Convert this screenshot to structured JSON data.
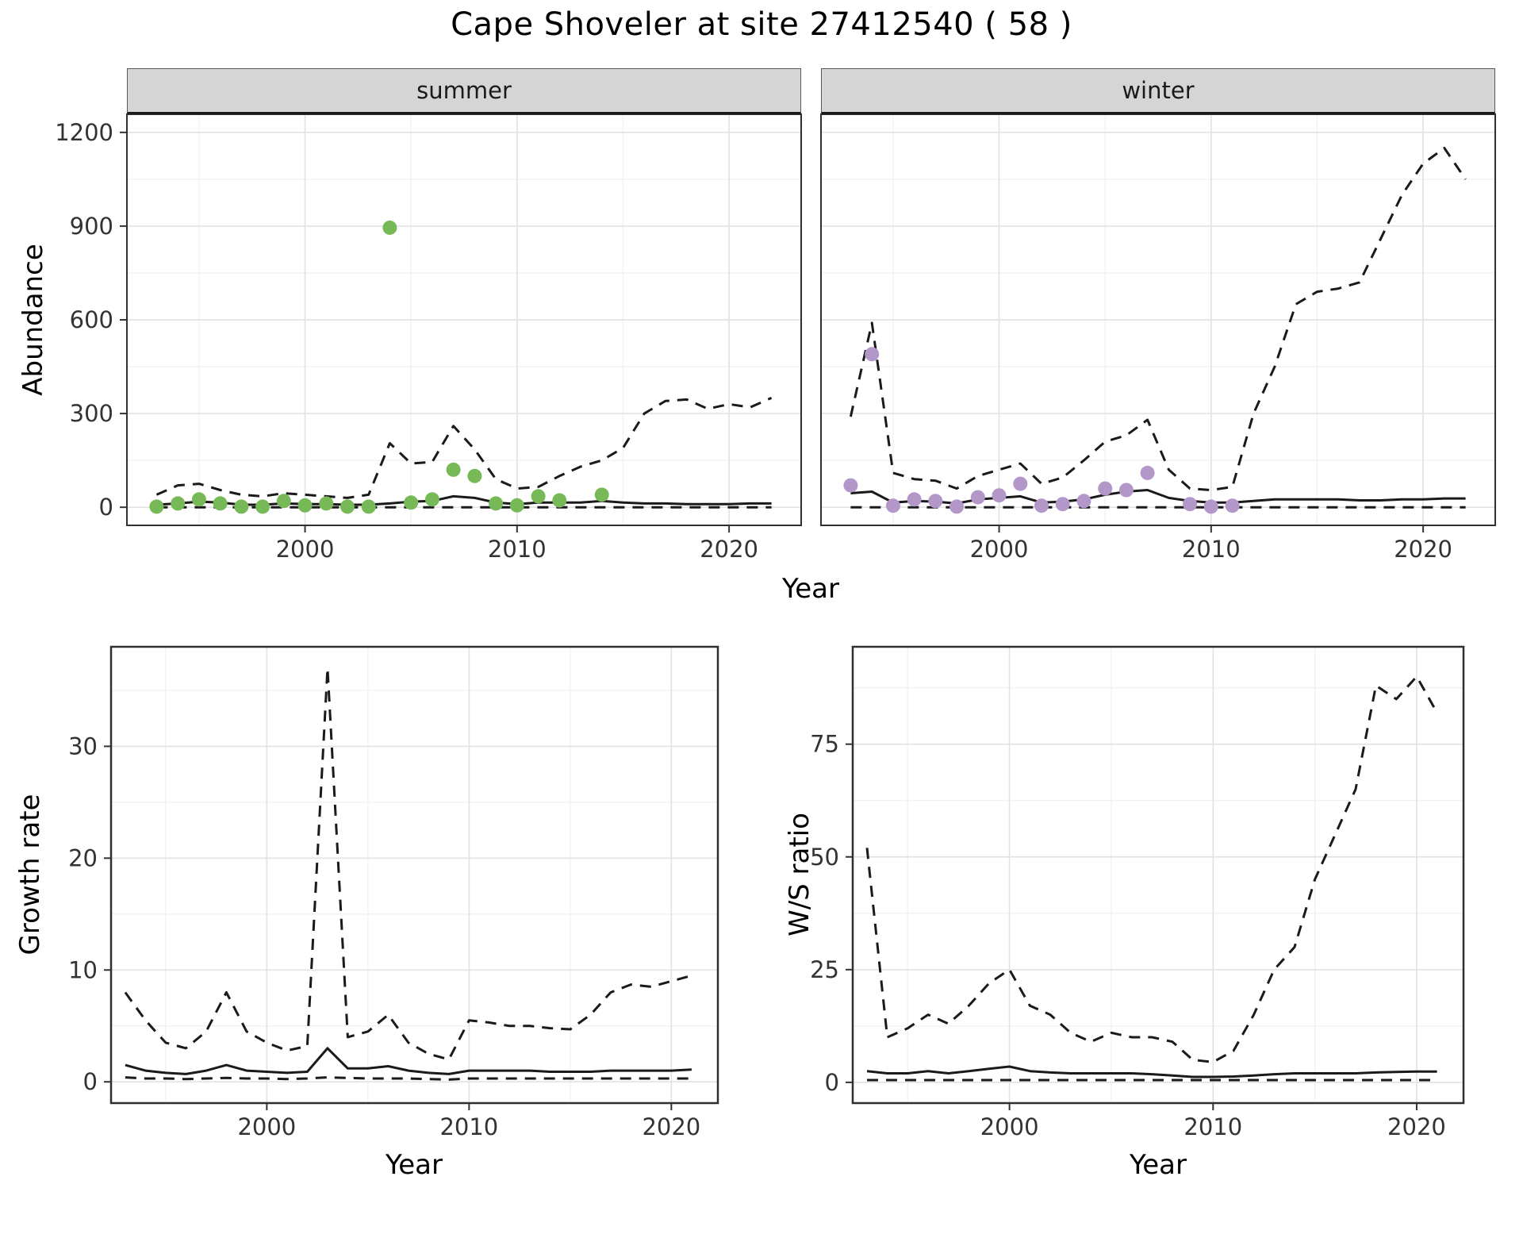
{
  "title": "Cape Shoveler at site 27412540 ( 58 )",
  "colors": {
    "summer_point": "#78b957",
    "winter_point": "#b397c8",
    "line": "#1a1a1a",
    "strip_bg": "#d5d5d5",
    "grid_major": "#e3e3e3",
    "grid_minor": "#f1f1f1",
    "panel_border": "#2f2f2f",
    "tick": "#333333"
  },
  "chart_data": [
    {
      "id": "abundance_summer",
      "type": "line+scatter",
      "facet": "summer",
      "xlabel": "Year",
      "ylabel": "Abundance",
      "xlim": [
        1991.6,
        2023.4
      ],
      "ylim": [
        -58,
        1258
      ],
      "xticks": [
        2000,
        2010,
        2020
      ],
      "yticks": [
        0,
        300,
        600,
        900,
        1200
      ],
      "x": [
        1993,
        1994,
        1995,
        1996,
        1997,
        1998,
        1999,
        2000,
        2001,
        2002,
        2003,
        2004,
        2005,
        2006,
        2007,
        2008,
        2009,
        2010,
        2011,
        2012,
        2013,
        2014,
        2015,
        2016,
        2017,
        2018,
        2019,
        2020,
        2021,
        2022
      ],
      "series": [
        {
          "name": "fit",
          "style": "solid",
          "values": [
            8,
            12,
            18,
            15,
            8,
            8,
            12,
            10,
            10,
            8,
            8,
            12,
            18,
            20,
            35,
            30,
            15,
            10,
            15,
            15,
            15,
            20,
            15,
            12,
            12,
            10,
            10,
            10,
            12,
            12
          ]
        },
        {
          "name": "ci_upper",
          "style": "dashed",
          "values": [
            40,
            70,
            75,
            55,
            40,
            35,
            45,
            40,
            35,
            30,
            40,
            205,
            140,
            145,
            260,
            185,
            90,
            60,
            65,
            100,
            130,
            150,
            190,
            300,
            340,
            345,
            315,
            330,
            320,
            350
          ]
        },
        {
          "name": "ci_lower",
          "style": "dashed",
          "values": [
            0,
            0,
            0,
            0,
            0,
            0,
            0,
            0,
            0,
            0,
            0,
            0,
            0,
            0,
            0,
            0,
            0,
            0,
            0,
            0,
            0,
            0,
            0,
            0,
            0,
            0,
            0,
            0,
            0,
            0
          ]
        }
      ],
      "points": {
        "name": "observed_counts",
        "color": "#78b957",
        "x": [
          1993,
          1994,
          1995,
          1996,
          1997,
          1998,
          1999,
          2000,
          2001,
          2002,
          2003,
          2004,
          2005,
          2006,
          2007,
          2008,
          2009,
          2010,
          2011,
          2012,
          2014
        ],
        "y": [
          2,
          12,
          25,
          12,
          2,
          2,
          20,
          6,
          12,
          2,
          2,
          895,
          15,
          25,
          120,
          100,
          12,
          6,
          35,
          22,
          40
        ]
      }
    },
    {
      "id": "abundance_winter",
      "type": "line+scatter",
      "facet": "winter",
      "xlabel": "Year",
      "ylabel": "Abundance",
      "xlim": [
        1991.6,
        2023.4
      ],
      "ylim": [
        -58,
        1258
      ],
      "xticks": [
        2000,
        2010,
        2020
      ],
      "yticks": [
        0,
        300,
        600,
        900,
        1200
      ],
      "x": [
        1993,
        1994,
        1995,
        1996,
        1997,
        1998,
        1999,
        2000,
        2001,
        2002,
        2003,
        2004,
        2005,
        2006,
        2007,
        2008,
        2009,
        2010,
        2011,
        2012,
        2013,
        2014,
        2015,
        2016,
        2017,
        2018,
        2019,
        2020,
        2021,
        2022
      ],
      "series": [
        {
          "name": "fit",
          "style": "solid",
          "values": [
            45,
            50,
            15,
            20,
            18,
            12,
            25,
            30,
            35,
            15,
            18,
            25,
            40,
            50,
            55,
            30,
            20,
            15,
            15,
            20,
            25,
            25,
            25,
            25,
            22,
            22,
            25,
            25,
            28,
            28
          ]
        },
        {
          "name": "ci_upper",
          "style": "dashed",
          "values": [
            290,
            590,
            110,
            90,
            85,
            60,
            100,
            120,
            140,
            75,
            95,
            150,
            210,
            230,
            280,
            120,
            60,
            55,
            65,
            300,
            450,
            650,
            690,
            700,
            720,
            860,
            1000,
            1100,
            1150,
            1050
          ]
        },
        {
          "name": "ci_lower",
          "style": "dashed",
          "values": [
            0,
            0,
            0,
            0,
            0,
            0,
            0,
            0,
            0,
            0,
            0,
            0,
            0,
            0,
            0,
            0,
            0,
            0,
            0,
            0,
            0,
            0,
            0,
            0,
            0,
            0,
            0,
            0,
            0,
            0
          ]
        }
      ],
      "points": {
        "name": "observed_counts",
        "color": "#b397c8",
        "x": [
          1993,
          1994,
          1995,
          1996,
          1997,
          1998,
          1999,
          2000,
          2001,
          2002,
          2003,
          2004,
          2005,
          2006,
          2007,
          2009,
          2010,
          2011
        ],
        "y": [
          70,
          490,
          5,
          25,
          20,
          2,
          32,
          38,
          75,
          5,
          10,
          20,
          60,
          55,
          110,
          10,
          2,
          5
        ]
      }
    },
    {
      "id": "growth_rate",
      "type": "line",
      "xlabel": "Year",
      "ylabel": "Growth rate",
      "xlim": [
        1992.3,
        2022.3
      ],
      "ylim": [
        -1.9,
        38.9
      ],
      "xticks": [
        2000,
        2010,
        2020
      ],
      "yticks": [
        0,
        10,
        20,
        30
      ],
      "x": [
        1993,
        1994,
        1995,
        1996,
        1997,
        1998,
        1999,
        2000,
        2001,
        2002,
        2003,
        2004,
        2005,
        2006,
        2007,
        2008,
        2009,
        2010,
        2011,
        2012,
        2013,
        2014,
        2015,
        2016,
        2017,
        2018,
        2019,
        2020,
        2021
      ],
      "series": [
        {
          "name": "fit",
          "style": "solid",
          "values": [
            1.5,
            1,
            0.8,
            0.7,
            1,
            1.5,
            1,
            0.9,
            0.8,
            0.9,
            3,
            1.2,
            1.2,
            1.4,
            1,
            0.8,
            0.7,
            1,
            1,
            1,
            1,
            0.9,
            0.9,
            0.9,
            1,
            1,
            1,
            1,
            1.1
          ]
        },
        {
          "name": "ci_upper",
          "style": "dashed",
          "values": [
            8,
            5.5,
            3.5,
            3,
            4.5,
            8,
            4.5,
            3.5,
            2.8,
            3.2,
            37,
            4,
            4.5,
            6,
            3.5,
            2.5,
            2,
            5.5,
            5.3,
            5,
            5,
            4.8,
            4.7,
            6,
            8,
            8.7,
            8.5,
            9,
            9.5
          ]
        },
        {
          "name": "ci_lower",
          "style": "dashed",
          "values": [
            0.4,
            0.3,
            0.3,
            0.25,
            0.3,
            0.35,
            0.3,
            0.3,
            0.25,
            0.3,
            0.4,
            0.35,
            0.3,
            0.3,
            0.3,
            0.25,
            0.2,
            0.3,
            0.3,
            0.3,
            0.3,
            0.3,
            0.3,
            0.3,
            0.3,
            0.3,
            0.3,
            0.3,
            0.3
          ]
        }
      ]
    },
    {
      "id": "ws_ratio",
      "type": "line",
      "xlabel": "Year",
      "ylabel": "W/S ratio",
      "xlim": [
        1992.3,
        2022.3
      ],
      "ylim": [
        -4.6,
        96.6
      ],
      "xticks": [
        2000,
        2010,
        2020
      ],
      "yticks": [
        0,
        25,
        50,
        75
      ],
      "x": [
        1993,
        1994,
        1995,
        1996,
        1997,
        1998,
        1999,
        2000,
        2001,
        2002,
        2003,
        2004,
        2005,
        2006,
        2007,
        2008,
        2009,
        2010,
        2011,
        2012,
        2013,
        2014,
        2015,
        2016,
        2017,
        2018,
        2019,
        2020,
        2021
      ],
      "series": [
        {
          "name": "fit",
          "style": "solid",
          "values": [
            2.5,
            2,
            2,
            2.5,
            2,
            2.5,
            3,
            3.5,
            2.5,
            2.2,
            2,
            2,
            2,
            2,
            1.8,
            1.5,
            1.2,
            1.2,
            1.3,
            1.5,
            1.8,
            2,
            2,
            2,
            2,
            2.2,
            2.3,
            2.4,
            2.4
          ]
        },
        {
          "name": "ci_upper",
          "style": "dashed",
          "values": [
            52,
            10,
            12,
            15,
            13,
            17,
            22,
            25,
            17,
            15,
            11,
            9,
            11,
            10,
            10,
            9,
            5,
            4.5,
            7,
            15,
            25,
            30,
            45,
            55,
            65,
            88,
            85,
            90,
            82
          ]
        },
        {
          "name": "ci_lower",
          "style": "dashed",
          "values": [
            0.5,
            0.5,
            0.5,
            0.5,
            0.5,
            0.5,
            0.5,
            0.5,
            0.5,
            0.5,
            0.5,
            0.5,
            0.5,
            0.5,
            0.5,
            0.5,
            0.5,
            0.5,
            0.5,
            0.5,
            0.5,
            0.5,
            0.5,
            0.5,
            0.5,
            0.5,
            0.5,
            0.5,
            0.5
          ]
        }
      ]
    }
  ]
}
